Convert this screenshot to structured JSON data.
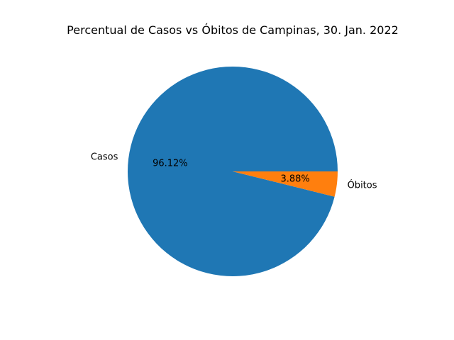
{
  "chart_data": {
    "type": "pie",
    "title": "Percentual de Casos vs Óbitos de Campinas, 30. Jan. 2022",
    "labels": [
      "Casos",
      "Óbitos"
    ],
    "values": [
      96.12,
      3.88
    ],
    "pct_labels": [
      "96.12%",
      "3.88%"
    ],
    "colors": [
      "#1f77b4",
      "#ff7f0e"
    ],
    "start_angle_deg": 0,
    "direction": "counterclockwise",
    "legend": "none"
  }
}
